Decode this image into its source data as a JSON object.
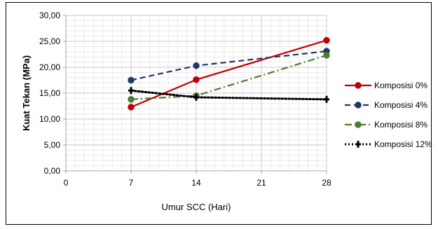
{
  "chart_data": {
    "type": "line",
    "title": "",
    "xlabel": "Umur SCC (Hari)",
    "ylabel": "Kuat Tekan (MPa)",
    "xlim": [
      0,
      28
    ],
    "ylim": [
      0,
      30
    ],
    "x_ticks": [
      "0",
      "7",
      "14",
      "21",
      "28"
    ],
    "x_tick_values": [
      0,
      7,
      14,
      21,
      28
    ],
    "y_ticks": [
      "0,00",
      "5,00",
      "10,00",
      "15,00",
      "20,00",
      "25,00",
      "30,00"
    ],
    "y_tick_values": [
      0,
      5,
      10,
      15,
      20,
      25,
      30
    ],
    "grid": true,
    "legend_position": "right",
    "x": [
      7,
      14,
      28
    ],
    "series": [
      {
        "name": "Komposisi 0%",
        "values": [
          12.3,
          17.6,
          25.2
        ],
        "color": "#C00000",
        "dash": "solid",
        "marker": "circle"
      },
      {
        "name": "Komposisi 4%",
        "values": [
          17.5,
          20.3,
          23.1
        ],
        "color": "#1F3864",
        "dash": "dash",
        "marker": "circle"
      },
      {
        "name": "Komposisi 8%",
        "values": [
          13.8,
          14.5,
          22.3
        ],
        "color": "#4E7B2F",
        "dash": "dashdot",
        "marker": "circle"
      },
      {
        "name": "Komposisi 12%",
        "values": [
          15.5,
          14.2,
          13.8
        ],
        "color": "#000000",
        "dash": "dot",
        "marker": "plus"
      }
    ]
  }
}
